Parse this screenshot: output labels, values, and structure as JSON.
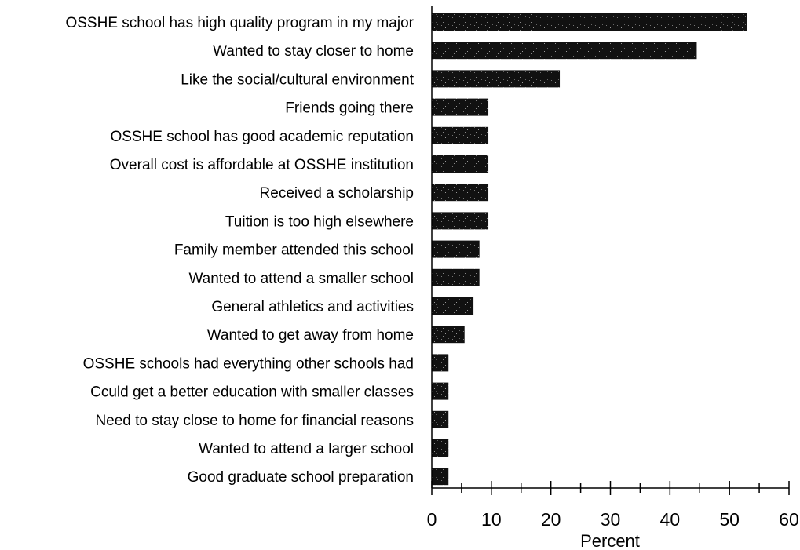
{
  "chart_data": {
    "type": "bar",
    "orientation": "horizontal",
    "title": "",
    "xlabel": "Percent",
    "ylabel": "",
    "xlim": [
      0,
      60
    ],
    "x_ticks": [
      0,
      10,
      20,
      30,
      40,
      50,
      60
    ],
    "x_minor_step": 5,
    "grid": false,
    "legend": "none",
    "bar_color": "#111111",
    "categories": [
      "OSSHE school has high quality program in my major",
      "Wanted to stay closer to home",
      "Like the social/cultural environment",
      "Friends going there",
      "OSSHE school has good academic reputation",
      "Overall cost is affordable at OSSHE institution",
      "Received a scholarship",
      "Tuition is too high elsewhere",
      "Family member attended this school",
      "Wanted to attend a smaller school",
      "General athletics and activities",
      "Wanted to get away from home",
      "OSSHE schools had everything other schools had",
      "Cculd get a better education with smaller classes",
      "Need to stay close to home for financial reasons",
      "Wanted to attend a larger school",
      "Good graduate school preparation"
    ],
    "values": [
      53,
      44.5,
      21.5,
      9.5,
      9.5,
      9.5,
      9.5,
      9.5,
      8,
      8,
      7,
      5.5,
      2.8,
      2.8,
      2.8,
      2.8,
      2.8
    ]
  }
}
